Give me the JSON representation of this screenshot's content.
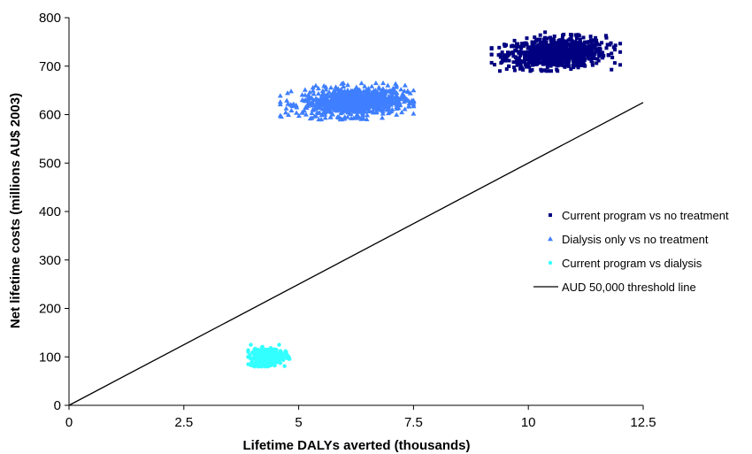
{
  "chart_data": {
    "type": "scatter",
    "xlabel": "Lifetime DALYs averted (thousands)",
    "ylabel": "Net lifetime costs (millions AU$ 2003)",
    "xlim": [
      0,
      12.5
    ],
    "ylim": [
      0,
      800
    ],
    "xticks": [
      "0",
      "2.5",
      "5",
      "7.5",
      "10",
      "12.5"
    ],
    "xtick_values": [
      0,
      2.5,
      5,
      7.5,
      10,
      12.5
    ],
    "yticks": [
      "0",
      "100",
      "200",
      "300",
      "400",
      "500",
      "600",
      "700",
      "800"
    ],
    "ytick_values": [
      0,
      100,
      200,
      300,
      400,
      500,
      600,
      700,
      800
    ],
    "grid": false,
    "legend_position": "right",
    "series": [
      {
        "name": "Current program vs no treatment",
        "marker": "square",
        "color": "#000080",
        "center": [
          10.6,
          727
        ],
        "x_range": [
          9.2,
          12.0
        ],
        "y_range": [
          690,
          770
        ],
        "n_points": 900
      },
      {
        "name": "Dialysis only vs no treatment",
        "marker": "triangle",
        "color": "#3F7FFF",
        "center": [
          6.2,
          627
        ],
        "x_range": [
          4.6,
          7.5
        ],
        "y_range": [
          590,
          665
        ],
        "n_points": 900
      },
      {
        "name": "Current program vs dialysis",
        "marker": "circle",
        "color": "#33FFFF",
        "center": [
          4.3,
          100
        ],
        "x_range": [
          3.9,
          4.8
        ],
        "y_range": [
          80,
          125
        ],
        "n_points": 400
      }
    ],
    "threshold_line": {
      "name": "AUD 50,000 threshold line",
      "color": "#000000",
      "x": [
        0,
        12.5
      ],
      "y": [
        0,
        625
      ]
    }
  }
}
